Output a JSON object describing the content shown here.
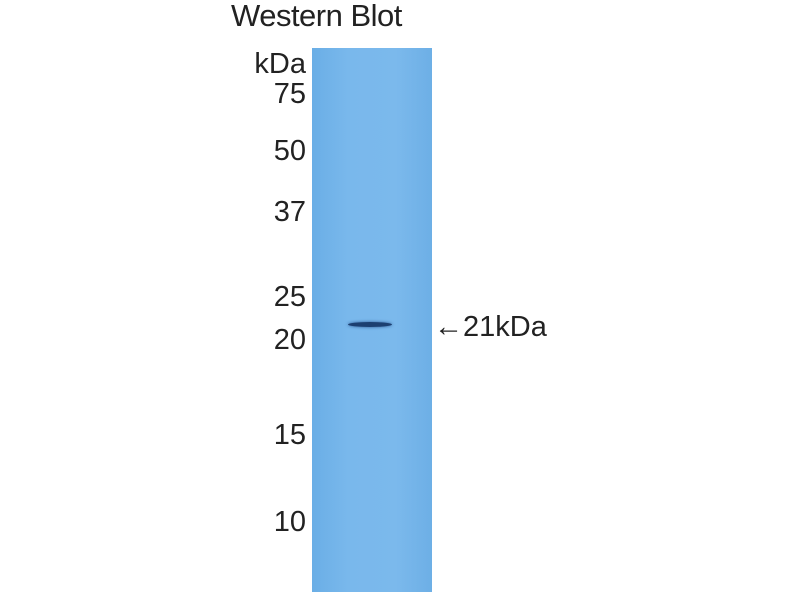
{
  "title": "Western Blot",
  "unit_label": "kDa",
  "markers": [
    "75",
    "50",
    "37",
    "25",
    "20",
    "15",
    "10"
  ],
  "band_annotation": "←21kDa",
  "colors": {
    "membrane": "#76b6ea",
    "band": "#1c3f70"
  }
}
